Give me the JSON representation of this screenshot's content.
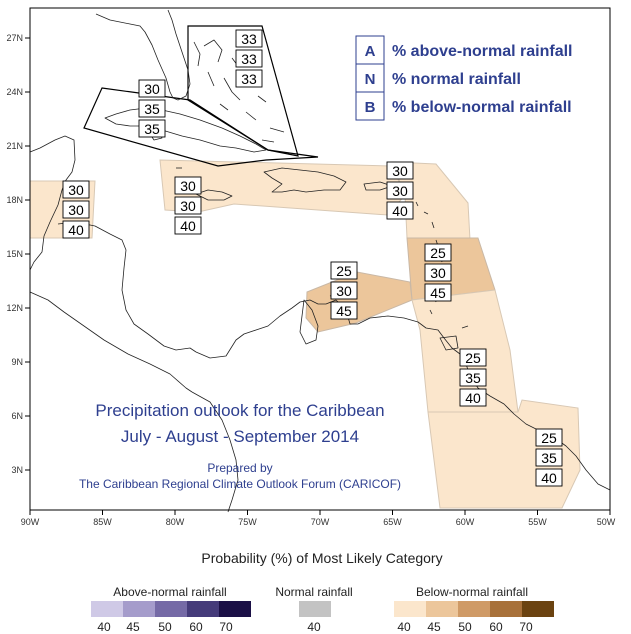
{
  "axes": {
    "lon_labels": [
      "90W",
      "85W",
      "80W",
      "75W",
      "70W",
      "65W",
      "60W",
      "55W",
      "50W"
    ],
    "lat_labels": [
      "27N",
      "24N",
      "21N",
      "18N",
      "15N",
      "12N",
      "9N",
      "6N",
      "3N"
    ]
  },
  "legend": {
    "items": [
      {
        "letter": "A",
        "text": "% above-normal rainfall"
      },
      {
        "letter": "N",
        "text": "% normal rainfall"
      },
      {
        "letter": "B",
        "text": "% below-normal rainfall"
      }
    ]
  },
  "title": {
    "line1": "Precipitation outlook for the Caribbean",
    "line2": "July - August - September 2014"
  },
  "credit": {
    "line1": "Prepared by",
    "line2": "The Caribbean Regional Climate Outlook Forum (CARICOF)"
  },
  "regions": [
    {
      "id": "bahamas",
      "values": [
        "33",
        "33",
        "33"
      ]
    },
    {
      "id": "cuba",
      "values": [
        "30",
        "35",
        "35"
      ]
    },
    {
      "id": "belize",
      "values": [
        "30",
        "30",
        "40"
      ]
    },
    {
      "id": "jamaica",
      "values": [
        "30",
        "30",
        "40"
      ]
    },
    {
      "id": "puerto-rico",
      "values": [
        "30",
        "30",
        "40"
      ]
    },
    {
      "id": "leeward",
      "values": [
        "25",
        "30",
        "45"
      ]
    },
    {
      "id": "abc-islands",
      "values": [
        "25",
        "30",
        "45"
      ]
    },
    {
      "id": "trinidad",
      "values": [
        "25",
        "35",
        "40"
      ]
    },
    {
      "id": "guianas",
      "values": [
        "25",
        "35",
        "40"
      ]
    }
  ],
  "key": {
    "title": "Probability (%) of Most Likely Category",
    "above": {
      "label": "Above-normal rainfall",
      "values": [
        "40",
        "45",
        "50",
        "60",
        "70"
      ],
      "colors": [
        "#cfc9e6",
        "#a59ccb",
        "#756aa6",
        "#453b7a",
        "#1b1046"
      ]
    },
    "normal": {
      "label": "Normal rainfall",
      "values": [
        "40"
      ],
      "colors": [
        "#c3c3c3"
      ]
    },
    "below": {
      "label": "Below-normal rainfall",
      "values": [
        "40",
        "45",
        "50",
        "60",
        "70"
      ],
      "colors": [
        "#fbe6cc",
        "#ecc69b",
        "#cf9a66",
        "#a8713a",
        "#6b4311"
      ]
    }
  }
}
